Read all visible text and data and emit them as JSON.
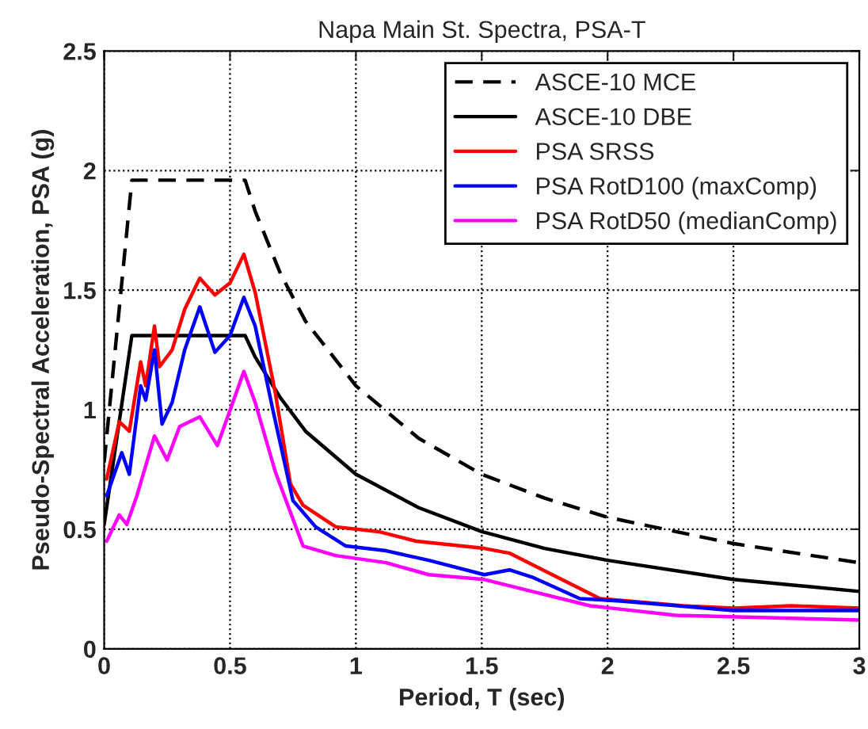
{
  "chart_data": {
    "type": "line",
    "title": "Napa Main St. Spectra, PSA-T",
    "xlabel": "Period, T (sec)",
    "ylabel": "Pseudo-Spectral Acceleration, PSA (g)",
    "xlim": [
      0,
      3
    ],
    "ylim": [
      0,
      2.5
    ],
    "xticks": [
      0,
      0.5,
      1,
      1.5,
      2,
      2.5,
      3
    ],
    "yticks": [
      0,
      0.5,
      1,
      1.5,
      2,
      2.5
    ],
    "grid": true,
    "legend": "top right",
    "series": [
      {
        "name": "ASCE-10 MCE",
        "color": "#000000",
        "line_style": "dashed",
        "x": [
          0,
          0.11,
          0.56,
          0.6,
          0.7,
          0.8,
          1,
          1.25,
          1.5,
          1.75,
          2,
          2.5,
          3
        ],
        "values": [
          0.78,
          1.96,
          1.96,
          1.83,
          1.57,
          1.37,
          1.1,
          0.88,
          0.73,
          0.63,
          0.55,
          0.44,
          0.36
        ]
      },
      {
        "name": "ASCE-10 DBE",
        "color": "#000000",
        "x": [
          0,
          0.11,
          0.56,
          0.6,
          0.7,
          0.8,
          1,
          1.25,
          1.5,
          1.75,
          2,
          2.5,
          3
        ],
        "values": [
          0.52,
          1.31,
          1.31,
          1.22,
          1.05,
          0.91,
          0.73,
          0.59,
          0.49,
          0.42,
          0.37,
          0.29,
          0.24
        ]
      },
      {
        "name": "PSA SRSS",
        "color": "#ff0000",
        "x": [
          0.01,
          0.06,
          0.1,
          0.145,
          0.165,
          0.2,
          0.22,
          0.27,
          0.32,
          0.38,
          0.44,
          0.5,
          0.555,
          0.6,
          0.68,
          0.74,
          0.79,
          0.82,
          0.92,
          1.09,
          1.24,
          1.51,
          1.61,
          1.78,
          1.97,
          2.3,
          2.5,
          2.73,
          3
        ],
        "values": [
          0.71,
          0.95,
          0.91,
          1.2,
          1.1,
          1.35,
          1.18,
          1.25,
          1.42,
          1.55,
          1.48,
          1.53,
          1.65,
          1.49,
          1.07,
          0.69,
          0.6,
          0.58,
          0.51,
          0.49,
          0.45,
          0.42,
          0.4,
          0.31,
          0.21,
          0.18,
          0.17,
          0.18,
          0.17
        ]
      },
      {
        "name": "PSA RotD100 (maxComp)",
        "color": "#0000ff",
        "x": [
          0.01,
          0.07,
          0.1,
          0.145,
          0.165,
          0.2,
          0.23,
          0.27,
          0.32,
          0.38,
          0.44,
          0.5,
          0.555,
          0.6,
          0.67,
          0.75,
          0.84,
          0.96,
          1.12,
          1.29,
          1.51,
          1.61,
          1.7,
          1.89,
          2.05,
          2.5,
          3
        ],
        "values": [
          0.64,
          0.82,
          0.73,
          1.1,
          1.04,
          1.25,
          0.94,
          1.03,
          1.25,
          1.43,
          1.24,
          1.31,
          1.47,
          1.35,
          1.0,
          0.62,
          0.51,
          0.43,
          0.41,
          0.37,
          0.31,
          0.33,
          0.3,
          0.21,
          0.2,
          0.16,
          0.16
        ]
      },
      {
        "name": "PSA RotD50 (medianComp)",
        "color": "#ff00ff",
        "x": [
          0.01,
          0.06,
          0.09,
          0.13,
          0.2,
          0.25,
          0.3,
          0.38,
          0.45,
          0.555,
          0.6,
          0.68,
          0.79,
          0.92,
          1.12,
          1.29,
          1.51,
          1.7,
          1.93,
          2.27,
          3
        ],
        "values": [
          0.45,
          0.56,
          0.52,
          0.64,
          0.89,
          0.79,
          0.93,
          0.97,
          0.85,
          1.16,
          1.03,
          0.74,
          0.43,
          0.39,
          0.36,
          0.31,
          0.29,
          0.24,
          0.18,
          0.14,
          0.12
        ]
      }
    ]
  }
}
